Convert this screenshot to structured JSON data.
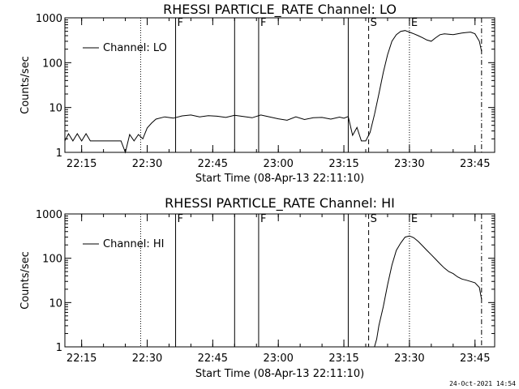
{
  "chart_data": [
    {
      "type": "line",
      "title": "RHESSI PARTICLE_RATE Channel: LO",
      "xlabel": "Start Time (08-Apr-13 22:11:10)",
      "ylabel": "Counts/sec",
      "y_scale": "log",
      "xlim": [
        "22:11:10",
        "23:49:30"
      ],
      "ylim": [
        1,
        1000
      ],
      "x_ticks": [
        "22:15",
        "22:30",
        "22:45",
        "23:00",
        "23:15",
        "23:30",
        "23:45"
      ],
      "y_ticks": [
        "1",
        "10",
        "100",
        "1000"
      ],
      "legend": {
        "position": "top-left",
        "entries": [
          "Channel: LO"
        ]
      },
      "grid": false,
      "series": [
        {
          "name": "Channel: LO",
          "x": [
            "22:11:10",
            "22:12",
            "22:13",
            "22:14",
            "22:15",
            "22:16",
            "22:17",
            "22:18",
            "22:19",
            "22:20",
            "22:21",
            "22:22",
            "22:23",
            "22:24",
            "22:25",
            "22:26",
            "22:27",
            "22:28",
            "22:29",
            "22:30",
            "22:31",
            "22:32",
            "22:34",
            "22:36",
            "22:38",
            "22:40",
            "22:42",
            "22:44",
            "22:46",
            "22:48",
            "22:50",
            "22:52",
            "22:54",
            "22:56",
            "22:58",
            "23:00",
            "23:02",
            "23:04",
            "23:06",
            "23:08",
            "23:10",
            "23:12",
            "23:14",
            "23:15",
            "23:16",
            "23:17",
            "23:18",
            "23:19",
            "23:20",
            "23:21",
            "23:22",
            "23:23",
            "23:24",
            "23:25",
            "23:26",
            "23:27",
            "23:28",
            "23:29",
            "23:30",
            "23:31",
            "23:32",
            "23:33",
            "23:34",
            "23:35",
            "23:36",
            "23:37",
            "23:38",
            "23:39",
            "23:40",
            "23:41",
            "23:42",
            "23:43",
            "23:44",
            "23:45",
            "23:46",
            "23:46:30"
          ],
          "y": [
            1.8,
            2.6,
            1.8,
            2.6,
            1.8,
            2.6,
            1.8,
            1.8,
            1.8,
            1.8,
            1.8,
            1.8,
            1.8,
            1.8,
            1.0,
            2.5,
            1.8,
            2.5,
            2.0,
            3.5,
            4.5,
            5.5,
            6.2,
            5.8,
            6.5,
            6.8,
            6.2,
            6.6,
            6.4,
            6.0,
            6.7,
            6.3,
            5.9,
            6.8,
            6.2,
            5.6,
            5.2,
            6.2,
            5.4,
            5.9,
            6.0,
            5.5,
            6.1,
            5.8,
            6.3,
            2.4,
            3.6,
            1.8,
            1.8,
            2.8,
            7.0,
            20.0,
            60.0,
            150.0,
            300.0,
            420.0,
            500.0,
            520.0,
            480.0,
            440.0,
            400.0,
            360.0,
            320.0,
            300.0,
            360.0,
            420.0,
            440.0,
            430.0,
            420.0,
            440.0,
            460.0,
            470.0,
            480.0,
            440.0,
            300.0,
            180.0
          ]
        }
      ],
      "annotations": [
        {
          "label": "F",
          "x": "22:36:30",
          "style": "solid"
        },
        {
          "label": "",
          "x": "22:50:00",
          "style": "solid"
        },
        {
          "label": "F",
          "x": "22:55:30",
          "style": "solid"
        },
        {
          "label": "",
          "x": "23:16:00",
          "style": "solid"
        },
        {
          "label": "",
          "x": "22:28:30",
          "style": "dotted"
        },
        {
          "label": "S",
          "x": "23:20:40",
          "style": "dashed"
        },
        {
          "label": "E",
          "x": "23:30:00",
          "style": "dotted"
        },
        {
          "label": "",
          "x": "23:46:30",
          "style": "dashdot"
        }
      ]
    },
    {
      "type": "line",
      "title": "RHESSI PARTICLE_RATE Channel: HI",
      "xlabel": "Start Time (08-Apr-13 22:11:10)",
      "ylabel": "Counts/sec",
      "y_scale": "log",
      "xlim": [
        "22:11:10",
        "23:49:30"
      ],
      "ylim": [
        1,
        1000
      ],
      "x_ticks": [
        "22:15",
        "22:30",
        "22:45",
        "23:00",
        "23:15",
        "23:30",
        "23:45"
      ],
      "y_ticks": [
        "1",
        "10",
        "100",
        "1000"
      ],
      "legend": {
        "position": "top-left",
        "entries": [
          "Channel: HI"
        ]
      },
      "grid": false,
      "series": [
        {
          "name": "Channel: HI",
          "x": [
            "23:22:00",
            "23:22:30",
            "23:23",
            "23:24",
            "23:25",
            "23:26",
            "23:27",
            "23:28",
            "23:29",
            "23:30",
            "23:31",
            "23:32",
            "23:33",
            "23:34",
            "23:35",
            "23:36",
            "23:37",
            "23:38",
            "23:39",
            "23:40",
            "23:41",
            "23:42",
            "23:43",
            "23:44",
            "23:45",
            "23:46",
            "23:46:30"
          ],
          "y": [
            1.0,
            1.5,
            3.0,
            8.0,
            25.0,
            70.0,
            150.0,
            220.0,
            300.0,
            320.0,
            290.0,
            240.0,
            190.0,
            150.0,
            120.0,
            95.0,
            75.0,
            60.0,
            50.0,
            45.0,
            38.0,
            34.0,
            32.0,
            30.0,
            28.0,
            22.0,
            12.0
          ]
        }
      ],
      "annotations": [
        {
          "label": "F",
          "x": "22:36:30",
          "style": "solid"
        },
        {
          "label": "",
          "x": "22:50:00",
          "style": "solid"
        },
        {
          "label": "F",
          "x": "22:55:30",
          "style": "solid"
        },
        {
          "label": "",
          "x": "23:16:00",
          "style": "solid"
        },
        {
          "label": "",
          "x": "22:28:30",
          "style": "dotted"
        },
        {
          "label": "S",
          "x": "23:20:40",
          "style": "dashed"
        },
        {
          "label": "E",
          "x": "23:30:00",
          "style": "dotted"
        },
        {
          "label": "",
          "x": "23:46:30",
          "style": "dashdot"
        }
      ]
    }
  ],
  "footer": {
    "timestamp": "24-Oct-2021 14:54"
  }
}
